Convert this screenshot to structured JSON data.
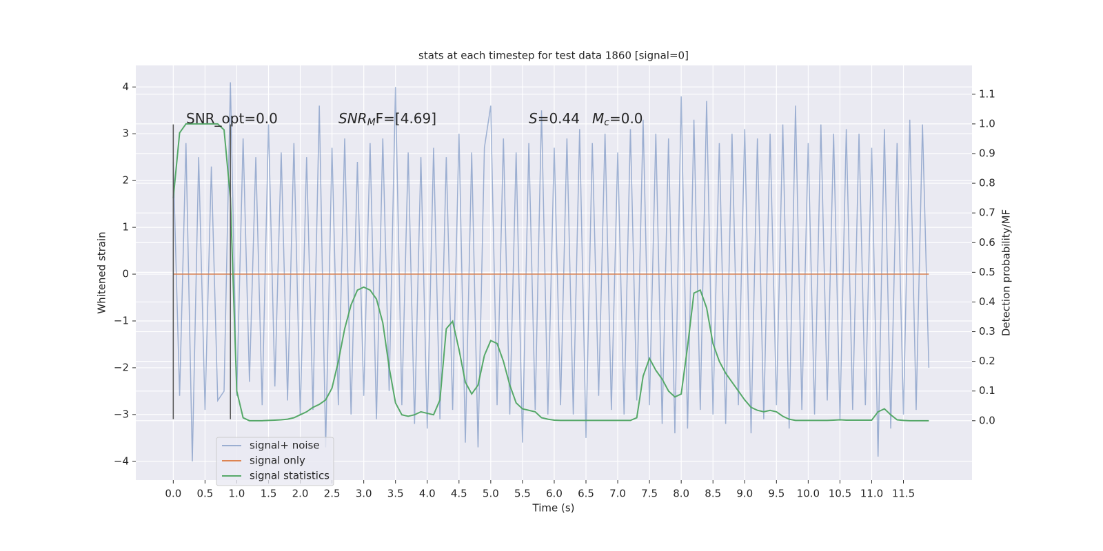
{
  "chart_data": {
    "type": "line",
    "title": "stats at each timestep for test data 1860 [signal=0]",
    "xlabel": "Time (s)",
    "ylabel": "Whitened strain",
    "y2label": "Detection probability/MF",
    "x": [
      0,
      0.1,
      0.2,
      0.3,
      0.4,
      0.5,
      0.6,
      0.7,
      0.8,
      0.9,
      1.0,
      1.1,
      1.2,
      1.3,
      1.4,
      1.5,
      1.6,
      1.7,
      1.8,
      1.9,
      2.0,
      2.1,
      2.2,
      2.3,
      2.4,
      2.5,
      2.6,
      2.7,
      2.8,
      2.9,
      3.0,
      3.1,
      3.2,
      3.3,
      3.4,
      3.5,
      3.6,
      3.7,
      3.8,
      3.9,
      4.0,
      4.1,
      4.2,
      4.3,
      4.4,
      4.5,
      4.6,
      4.7,
      4.8,
      4.9,
      5.0,
      5.1,
      5.2,
      5.3,
      5.4,
      5.5,
      5.6,
      5.7,
      5.8,
      5.9,
      6.0,
      6.1,
      6.2,
      6.3,
      6.4,
      6.5,
      6.6,
      6.7,
      6.8,
      6.9,
      7.0,
      7.1,
      7.2,
      7.3,
      7.4,
      7.5,
      7.6,
      7.7,
      7.8,
      7.9,
      8.0,
      8.1,
      8.2,
      8.3,
      8.4,
      8.5,
      8.6,
      8.7,
      8.8,
      8.9,
      9.0,
      9.1,
      9.2,
      9.3,
      9.4,
      9.5,
      9.6,
      9.7,
      9.8,
      9.9,
      10.0,
      10.1,
      10.2,
      10.3,
      10.4,
      10.5,
      10.6,
      10.7,
      10.8,
      10.9,
      11.0,
      11.1,
      11.2,
      11.3,
      11.4,
      11.5,
      11.6,
      11.7,
      11.8,
      11.9
    ],
    "series": [
      {
        "name": "signal+ noise",
        "color": "#4c72b0",
        "alpha": 0.5,
        "values": [
          2.4,
          -2.6,
          2.8,
          -4.0,
          2.5,
          -2.9,
          2.3,
          -2.7,
          -2.5,
          4.1,
          -2.6,
          2.9,
          -2.3,
          2.5,
          -2.8,
          3.2,
          -2.4,
          2.6,
          -2.7,
          2.8,
          -3.0,
          2.5,
          -2.9,
          3.6,
          -3.7,
          2.7,
          -2.8,
          2.9,
          -3.0,
          2.4,
          -2.6,
          2.8,
          -3.1,
          2.9,
          -2.5,
          4.0,
          -2.8,
          2.6,
          -3.2,
          2.5,
          -3.3,
          2.7,
          -3.1,
          2.5,
          -2.9,
          3.0,
          -3.6,
          2.6,
          -3.7,
          2.7,
          3.6,
          -2.8,
          2.9,
          -3.0,
          2.6,
          -3.6,
          2.8,
          -2.9,
          3.5,
          -3.0,
          2.7,
          -2.8,
          2.9,
          -3.0,
          3.1,
          -3.5,
          2.8,
          -2.6,
          3.0,
          -2.9,
          2.6,
          -3.0,
          3.1,
          -2.7,
          3.3,
          -2.8,
          3.0,
          -3.2,
          2.9,
          -3.4,
          3.8,
          -3.3,
          3.3,
          -2.9,
          3.7,
          -3.0,
          2.8,
          -3.2,
          3.0,
          -2.8,
          3.1,
          -3.4,
          2.9,
          -3.1,
          3.0,
          -2.8,
          3.2,
          -3.3,
          3.6,
          -2.9,
          2.8,
          -3.0,
          3.2,
          -2.7,
          3.0,
          -3.1,
          3.1,
          -2.9,
          3.0,
          -2.8,
          2.7,
          -3.9,
          3.1,
          -3.3,
          2.8,
          -3.0,
          3.3,
          -2.9,
          3.2,
          -2.0
        ]
      },
      {
        "name": "signal only",
        "color": "#dd8452",
        "alpha": 1,
        "values": [
          0,
          0,
          0,
          0,
          0,
          0,
          0,
          0,
          0,
          0,
          0,
          0,
          0,
          0,
          0,
          0,
          0,
          0,
          0,
          0,
          0,
          0,
          0,
          0,
          0,
          0,
          0,
          0,
          0,
          0,
          0,
          0,
          0,
          0,
          0,
          0,
          0,
          0,
          0,
          0,
          0,
          0,
          0,
          0,
          0,
          0,
          0,
          0,
          0,
          0,
          0,
          0,
          0,
          0,
          0,
          0,
          0,
          0,
          0,
          0,
          0,
          0,
          0,
          0,
          0,
          0,
          0,
          0,
          0,
          0,
          0,
          0,
          0,
          0,
          0,
          0,
          0,
          0,
          0,
          0,
          0,
          0,
          0,
          0,
          0,
          0,
          0,
          0,
          0,
          0,
          0,
          0,
          0,
          0,
          0,
          0,
          0,
          0,
          0,
          0,
          0,
          0,
          0,
          0,
          0,
          0,
          0,
          0,
          0,
          0,
          0,
          0,
          0,
          0,
          0,
          0,
          0,
          0,
          0,
          0
        ]
      },
      {
        "name": "signal statistics",
        "color": "#55a868",
        "alpha": 1,
        "axis": "y2",
        "values": [
          0.75,
          0.97,
          1.0,
          1.0,
          1.0,
          1.0,
          1.0,
          1.0,
          0.98,
          0.75,
          0.1,
          0.01,
          0.0,
          0.0,
          0.0,
          0.001,
          0.002,
          0.003,
          0.005,
          0.01,
          0.02,
          0.03,
          0.045,
          0.055,
          0.07,
          0.11,
          0.2,
          0.31,
          0.39,
          0.44,
          0.45,
          0.44,
          0.41,
          0.33,
          0.18,
          0.06,
          0.02,
          0.015,
          0.02,
          0.03,
          0.025,
          0.02,
          0.07,
          0.31,
          0.335,
          0.24,
          0.13,
          0.09,
          0.12,
          0.22,
          0.27,
          0.26,
          0.2,
          0.12,
          0.06,
          0.04,
          0.035,
          0.03,
          0.01,
          0.005,
          0.002,
          0.001,
          0.001,
          0.001,
          0.001,
          0.001,
          0.001,
          0.001,
          0.001,
          0.001,
          0.001,
          0.001,
          0.001,
          0.01,
          0.15,
          0.21,
          0.17,
          0.14,
          0.1,
          0.08,
          0.09,
          0.25,
          0.43,
          0.44,
          0.38,
          0.26,
          0.2,
          0.16,
          0.13,
          0.1,
          0.07,
          0.045,
          0.035,
          0.03,
          0.035,
          0.03,
          0.015,
          0.005,
          0.001,
          0.001,
          0.001,
          0.001,
          0.001,
          0.001,
          0.002,
          0.003,
          0.002,
          0.002,
          0.002,
          0.002,
          0.002,
          0.03,
          0.04,
          0.02,
          0.003,
          0.001,
          0.0,
          0.0,
          0.0,
          0.0
        ]
      }
    ],
    "vlines": {
      "x": [
        0,
        0.9
      ],
      "ymin": -3.1,
      "ymax": 3.2,
      "color": "#555555"
    },
    "annotations": [
      {
        "parts": [
          {
            "text": "SNR_opt=0.0"
          }
        ]
      },
      {
        "parts": [
          {
            "text": "SNR",
            "style": "italic"
          },
          {
            "text": "M",
            "style": "sub"
          },
          {
            "text": "F=[4.69]"
          }
        ]
      },
      {
        "parts": [
          {
            "text": "S",
            "style": "italic"
          },
          {
            "text": "=0.44"
          }
        ]
      },
      {
        "parts": [
          {
            "text": "M",
            "style": "italic"
          },
          {
            "text": "c",
            "style": "sub"
          },
          {
            "text": "=0.0"
          }
        ]
      }
    ],
    "xlim": [
      -0.59,
      12.58
    ],
    "xticks": [
      {
        "value": 0,
        "label": "0.0"
      },
      0.5,
      {
        "value": 1,
        "label": "1.0"
      },
      1.5,
      {
        "value": 2,
        "label": "2.0"
      },
      2.5,
      {
        "value": 3,
        "label": "3.0"
      },
      3.5,
      {
        "value": 4,
        "label": "4.0"
      },
      4.5,
      {
        "value": 5,
        "label": "5.0"
      },
      5.5,
      {
        "value": 6,
        "label": "6.0"
      },
      6.5,
      {
        "value": 7,
        "label": "7.0"
      },
      7.5,
      {
        "value": 8,
        "label": "8.0"
      },
      8.5,
      {
        "value": 9,
        "label": "9.0"
      },
      9.5,
      {
        "value": 10,
        "label": "10.0"
      },
      10.5,
      {
        "value": 11,
        "label": "11.0"
      },
      11.5
    ],
    "ylim": [
      -4.4,
      4.46
    ],
    "yticks": [
      {
        "value": -4,
        "label": "−4"
      },
      {
        "value": -3,
        "label": "−3"
      },
      {
        "value": -2,
        "label": "−2"
      },
      {
        "value": -1,
        "label": "−1"
      },
      0,
      1,
      2,
      3,
      4
    ],
    "y2lim": [
      -0.2,
      1.197
    ],
    "y2ticks": [
      {
        "value": 0,
        "label": "0.0"
      },
      0.1,
      0.2,
      0.3,
      0.4,
      0.5,
      0.6,
      0.7,
      0.8,
      0.9,
      {
        "value": 1,
        "label": "1.0"
      },
      1.1
    ],
    "grid": true,
    "background": "#eaeaf2",
    "legend": "lower left"
  }
}
